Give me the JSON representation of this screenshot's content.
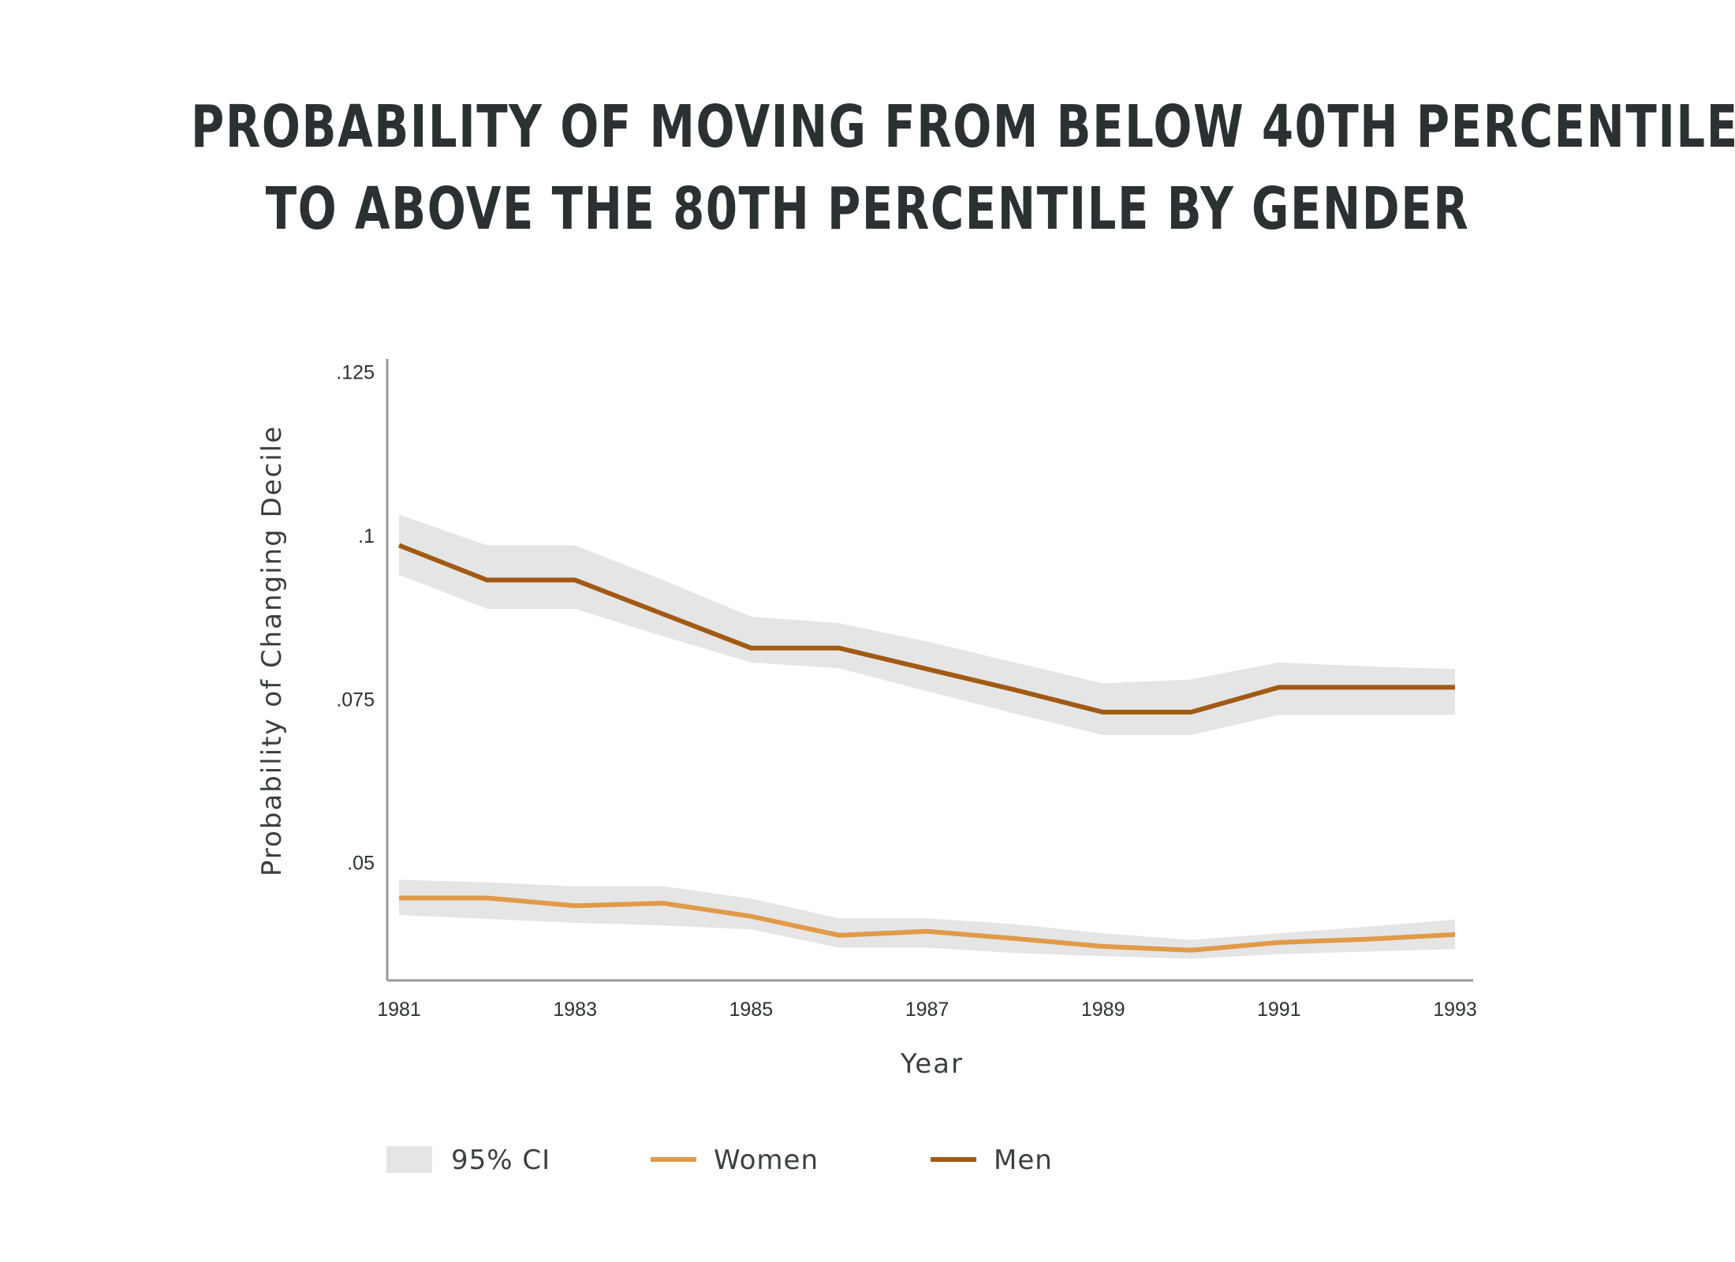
{
  "chart_data": {
    "type": "line",
    "title": [
      "PROBABILITY OF MOVING FROM BELOW 40TH PERCENTILE",
      "TO ABOVE THE 80TH PERCENTILE BY GENDER"
    ],
    "xlabel": "Year",
    "ylabel": "Probability of Changing Decile",
    "ylim": [
      0.032,
      0.127
    ],
    "xlim": [
      1981,
      1993
    ],
    "y_ticks": [
      {
        "value": 0.125,
        "label": ".125"
      },
      {
        "value": 0.1,
        "label": ".1"
      },
      {
        "value": 0.075,
        "label": ".075"
      },
      {
        "value": 0.05,
        "label": ".05"
      }
    ],
    "x_ticks": [
      {
        "value": 1981,
        "label": "1981"
      },
      {
        "value": 1983,
        "label": "1983"
      },
      {
        "value": 1985,
        "label": "1985"
      },
      {
        "value": 1987,
        "label": "1987"
      },
      {
        "value": 1989,
        "label": "1989"
      },
      {
        "value": 1991,
        "label": "1991"
      },
      {
        "value": 1993,
        "label": "1993"
      }
    ],
    "x": [
      1981,
      1982,
      1983,
      1984,
      1985,
      1986,
      1987,
      1988,
      1989,
      1990,
      1991,
      1992,
      1993
    ],
    "series": [
      {
        "name": "Men",
        "color": "#a15a14",
        "values": [
          0.0985,
          0.0932,
          0.0932,
          0.088,
          0.0828,
          0.0828,
          0.0796,
          0.0764,
          0.073,
          0.073,
          0.0768,
          0.0768,
          0.0768
        ],
        "ci_upper": [
          0.1032,
          0.0985,
          0.0985,
          0.0932,
          0.0876,
          0.0866,
          0.0838,
          0.0806,
          0.0774,
          0.078,
          0.0806,
          0.08,
          0.0796
        ],
        "ci_lower": [
          0.094,
          0.0888,
          0.0888,
          0.0846,
          0.0806,
          0.0797,
          0.0762,
          0.0728,
          0.0695,
          0.0695,
          0.0726,
          0.0726,
          0.0726
        ]
      },
      {
        "name": "Women",
        "color": "#e09a48",
        "values": [
          0.0446,
          0.0446,
          0.0434,
          0.0438,
          0.0418,
          0.0389,
          0.0395,
          0.0384,
          0.0372,
          0.0366,
          0.0378,
          0.0383,
          0.039
        ],
        "ci_upper": [
          0.0474,
          0.047,
          0.0464,
          0.0464,
          0.0445,
          0.0415,
          0.0415,
          0.0406,
          0.0392,
          0.0382,
          0.0392,
          0.0402,
          0.0413
        ],
        "ci_lower": [
          0.042,
          0.0414,
          0.0408,
          0.0404,
          0.0398,
          0.037,
          0.037,
          0.0362,
          0.0357,
          0.0353,
          0.036,
          0.0364,
          0.0368
        ]
      }
    ],
    "legend": {
      "placement": "bottom",
      "ci_color": "#e5e5e5",
      "entries": [
        {
          "label": "95% CI",
          "kind": "band"
        },
        {
          "label": "Women",
          "kind": "line",
          "color": "#e09a48"
        },
        {
          "label": "Men",
          "kind": "line",
          "color": "#a15a14"
        }
      ]
    },
    "grid": false
  }
}
